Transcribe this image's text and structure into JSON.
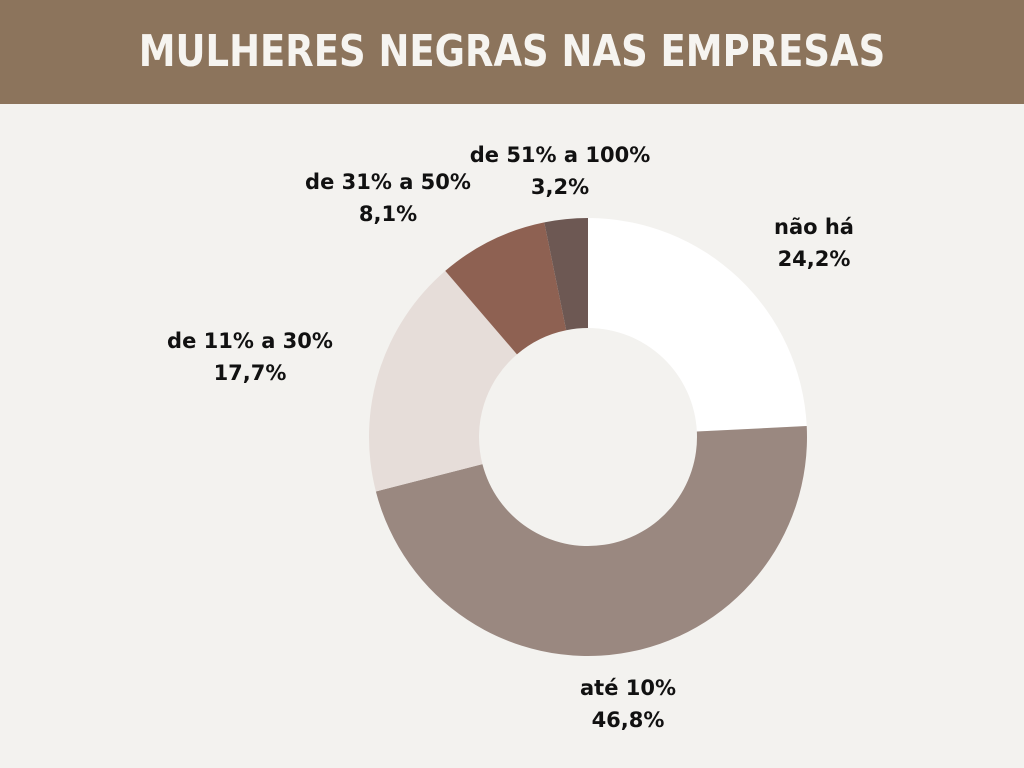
{
  "title": "MULHERES NEGRAS NAS EMPRESAS",
  "colors": {
    "header": "#8c745c",
    "background": "#f3f2ef",
    "title_text": "#f6f4f0"
  },
  "chart_data": {
    "type": "pie",
    "variant": "donut",
    "start_angle_deg": 0,
    "direction": "clockwise",
    "slices": [
      {
        "category": "não há",
        "value": 24.2,
        "label": "24,2%",
        "color": "#ffffff"
      },
      {
        "category": "até 10%",
        "value": 46.8,
        "label": "46,8%",
        "color": "#9a8880"
      },
      {
        "category": "de 11% a 30%",
        "value": 17.7,
        "label": "17,7%",
        "color": "#e6ddd9"
      },
      {
        "category": "de 31% a 50%",
        "value": 8.1,
        "label": "8,1%",
        "color": "#8e6152"
      },
      {
        "category": "de 51% a 100%",
        "value": 3.2,
        "label": "3,2%",
        "color": "#6d5853"
      }
    ]
  }
}
